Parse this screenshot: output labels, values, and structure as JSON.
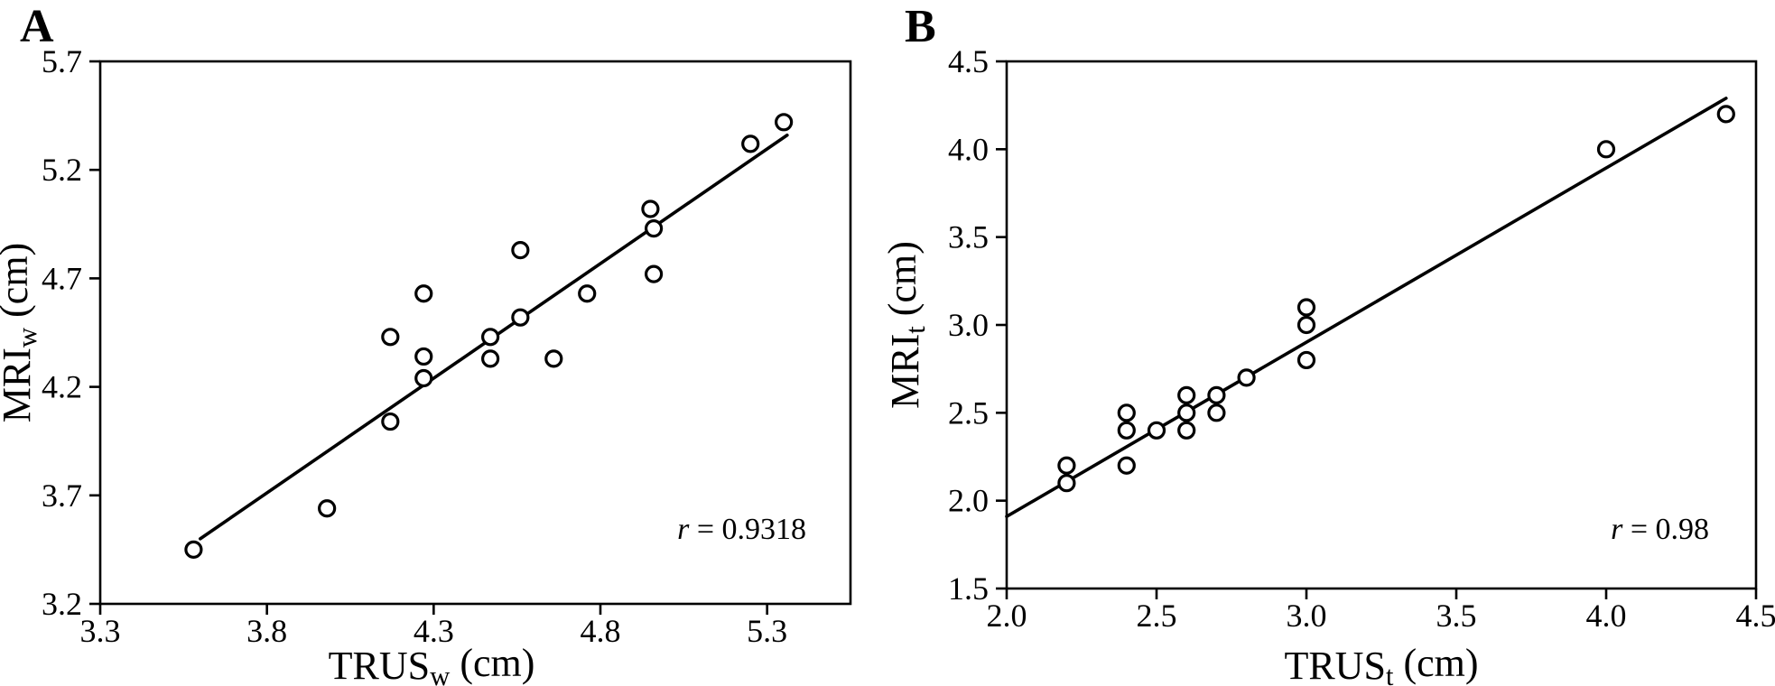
{
  "figure": {
    "background": "#ffffff",
    "ink_color": "#000000",
    "marker_style": "open-circle"
  },
  "chart_data": [
    {
      "type": "scatter",
      "panel_label": "A",
      "xlabel_text": "TRUSw (cm)",
      "ylabel_text": "MRIw (cm)",
      "xlabel_parts": [
        {
          "t": "TRUS"
        },
        {
          "t": "w",
          "sub": true
        },
        {
          "t": " (cm)"
        }
      ],
      "ylabel_parts": [
        {
          "t": "MRI"
        },
        {
          "t": "w",
          "sub": true
        },
        {
          "t": " (cm)"
        }
      ],
      "xlim": [
        3.3,
        5.55
      ],
      "ylim": [
        3.2,
        5.7
      ],
      "x_ticks": {
        "values": [
          3.3,
          3.8,
          4.3,
          4.8,
          5.3
        ],
        "labels": [
          "3.3",
          "3.8",
          "4.3",
          "4.8",
          "5.3"
        ]
      },
      "y_ticks": {
        "values": [
          5.7,
          5.2,
          4.7,
          4.2,
          3.7,
          3.2
        ],
        "labels": [
          "5.7",
          "5.2",
          "4.7",
          "4.2",
          "3.7",
          "3.2"
        ]
      },
      "grid": false,
      "legend": "none",
      "points": [
        [
          3.58,
          3.45
        ],
        [
          3.98,
          3.64
        ],
        [
          4.17,
          4.04
        ],
        [
          4.17,
          4.43
        ],
        [
          4.27,
          4.24
        ],
        [
          4.27,
          4.34
        ],
        [
          4.27,
          4.63
        ],
        [
          4.47,
          4.33
        ],
        [
          4.47,
          4.43
        ],
        [
          4.56,
          4.52
        ],
        [
          4.56,
          4.83
        ],
        [
          4.66,
          4.33
        ],
        [
          4.76,
          4.63
        ],
        [
          4.96,
          4.72
        ],
        [
          4.96,
          4.93
        ],
        [
          4.95,
          5.02
        ],
        [
          5.25,
          5.32
        ],
        [
          5.35,
          5.42
        ]
      ],
      "trendline": [
        [
          3.6,
          3.5
        ],
        [
          5.36,
          5.36
        ]
      ],
      "annotation_text": "r = 0.9318",
      "annotation_parts": [
        {
          "t": "r",
          "italic": true
        },
        {
          "t": " = 0.9318"
        }
      ]
    },
    {
      "type": "scatter",
      "panel_label": "B",
      "xlabel_text": "TRUSt (cm)",
      "ylabel_text": "MRIt (cm)",
      "xlabel_parts": [
        {
          "t": "TRUS"
        },
        {
          "t": "t",
          "sub": true
        },
        {
          "t": " (cm)"
        }
      ],
      "ylabel_parts": [
        {
          "t": "MRI"
        },
        {
          "t": "t",
          "sub": true
        },
        {
          "t": " (cm)"
        }
      ],
      "xlim": [
        2.0,
        4.5
      ],
      "ylim": [
        1.5,
        4.5
      ],
      "x_ticks": {
        "values": [
          2.0,
          2.5,
          3.0,
          3.5,
          4.0,
          4.5
        ],
        "labels": [
          "2.0",
          "2.5",
          "3.0",
          "3.5",
          "4.0",
          "4.5"
        ]
      },
      "y_ticks": {
        "values": [
          4.5,
          4.0,
          3.5,
          3.0,
          2.5,
          2.0,
          1.5
        ],
        "labels": [
          "4.5",
          "4.0",
          "3.5",
          "3.0",
          "2.5",
          "2.0",
          "1.5"
        ]
      },
      "grid": false,
      "legend": "none",
      "points": [
        [
          2.2,
          2.2
        ],
        [
          2.2,
          2.1
        ],
        [
          2.4,
          2.5
        ],
        [
          2.4,
          2.4
        ],
        [
          2.4,
          2.2
        ],
        [
          2.5,
          2.4
        ],
        [
          2.6,
          2.6
        ],
        [
          2.6,
          2.5
        ],
        [
          2.6,
          2.4
        ],
        [
          2.7,
          2.6
        ],
        [
          2.7,
          2.5
        ],
        [
          2.8,
          2.7
        ],
        [
          3.0,
          3.1
        ],
        [
          3.0,
          3.0
        ],
        [
          3.0,
          2.8
        ],
        [
          4.0,
          4.0
        ],
        [
          4.4,
          4.2
        ]
      ],
      "trendline": [
        [
          2.0,
          1.91
        ],
        [
          4.4,
          4.29
        ]
      ],
      "annotation_text": "r = 0.98",
      "annotation_parts": [
        {
          "t": "r",
          "italic": true
        },
        {
          "t": " = 0.98"
        }
      ]
    }
  ]
}
